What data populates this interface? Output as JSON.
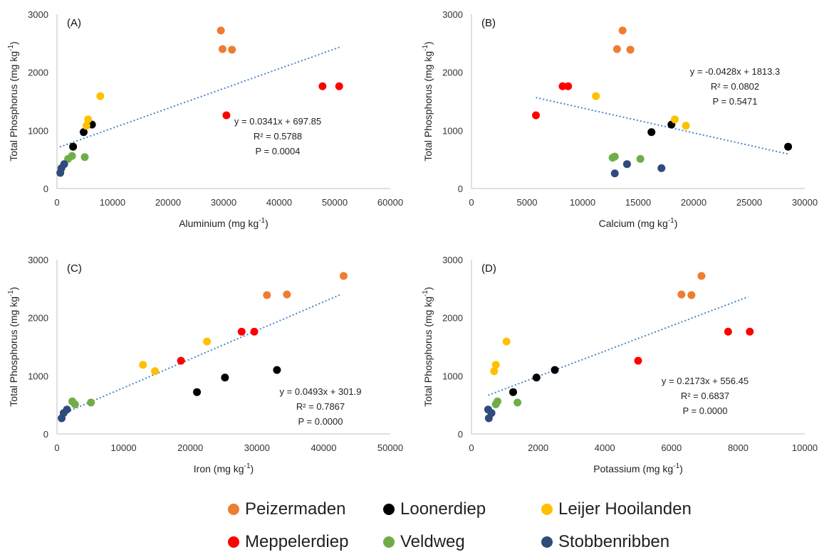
{
  "chart_data": [
    {
      "type": "scatter",
      "panel_label": "(A)",
      "xlabel": "Aluminium (mg kg",
      "xlabel_sup": "-1",
      "xlabel_end": ")",
      "ylabel": "Total Phosphorus (mg kg",
      "ylabel_sup": "-1",
      "ylabel_end": ")",
      "xlim": [
        0,
        60000
      ],
      "ylim": [
        0,
        3000
      ],
      "xticks": [
        "0",
        "10000",
        "20000",
        "30000",
        "40000",
        "50000",
        "60000"
      ],
      "yticks": [
        "0",
        "1000",
        "2000",
        "3000"
      ],
      "equation": "y = 0.0341x + 697.85",
      "r2": "R² = 0.5788",
      "p": "P = 0.0004",
      "trendline": {
        "slope": 0.0341,
        "intercept": 697.85,
        "x_range": [
          500,
          51000
        ]
      },
      "series": [
        {
          "name": "Peizermaden",
          "points": [
            [
              29500,
              2720
            ],
            [
              29800,
              2400
            ],
            [
              31500,
              2390
            ]
          ]
        },
        {
          "name": "Loonerdiep",
          "points": [
            [
              2900,
              720
            ],
            [
              4800,
              970
            ],
            [
              6300,
              1100
            ]
          ]
        },
        {
          "name": "Leijer Hooilanden",
          "points": [
            [
              5300,
              1080
            ],
            [
              5600,
              1190
            ],
            [
              7800,
              1590
            ]
          ]
        },
        {
          "name": "Meppelerdiep",
          "points": [
            [
              30500,
              1260
            ],
            [
              47800,
              1760
            ],
            [
              50800,
              1760
            ]
          ]
        },
        {
          "name": "Veldweg",
          "points": [
            [
              2000,
              510
            ],
            [
              2700,
              560
            ],
            [
              5000,
              540
            ]
          ]
        },
        {
          "name": "Stobbenribben",
          "points": [
            [
              600,
              270
            ],
            [
              800,
              350
            ],
            [
              1300,
              420
            ]
          ]
        }
      ]
    },
    {
      "type": "scatter",
      "panel_label": "(B)",
      "xlabel": "Calcium (mg kg",
      "xlabel_sup": "-1",
      "xlabel_end": ")",
      "ylabel": "Total Phosphorus (mg kg",
      "ylabel_sup": "-1",
      "ylabel_end": ")",
      "xlim": [
        0,
        30000
      ],
      "ylim": [
        0,
        3000
      ],
      "xticks": [
        "0",
        "5000",
        "10000",
        "15000",
        "20000",
        "25000",
        "30000"
      ],
      "yticks": [
        "0",
        "1000",
        "2000",
        "3000"
      ],
      "equation": "y = -0.0428x + 1813.3",
      "r2": "R² = 0.0802",
      "p": "P = 0.5471",
      "trendline": {
        "slope": -0.0428,
        "intercept": 1813.3,
        "x_range": [
          5800,
          28500
        ]
      },
      "series": [
        {
          "name": "Peizermaden",
          "points": [
            [
              13600,
              2720
            ],
            [
              13100,
              2400
            ],
            [
              14300,
              2390
            ]
          ]
        },
        {
          "name": "Loonerdiep",
          "points": [
            [
              16200,
              970
            ],
            [
              18000,
              1100
            ],
            [
              28500,
              720
            ]
          ]
        },
        {
          "name": "Leijer Hooilanden",
          "points": [
            [
              11200,
              1590
            ],
            [
              18300,
              1190
            ],
            [
              19300,
              1080
            ]
          ]
        },
        {
          "name": "Meppelerdiep",
          "points": [
            [
              5800,
              1260
            ],
            [
              8200,
              1760
            ],
            [
              8700,
              1760
            ]
          ]
        },
        {
          "name": "Veldweg",
          "points": [
            [
              12700,
              530
            ],
            [
              12900,
              550
            ],
            [
              15200,
              510
            ]
          ]
        },
        {
          "name": "Stobbenribben",
          "points": [
            [
              12900,
              260
            ],
            [
              14000,
              420
            ],
            [
              17100,
              350
            ]
          ]
        }
      ]
    },
    {
      "type": "scatter",
      "panel_label": "(C)",
      "xlabel": "Iron (mg kg",
      "xlabel_sup": "-1",
      "xlabel_end": ")",
      "ylabel": "Total Phosphorus (mg kg",
      "ylabel_sup": "-1",
      "ylabel_end": ")",
      "xlim": [
        0,
        50000
      ],
      "ylim": [
        0,
        3000
      ],
      "xticks": [
        "0",
        "10000",
        "20000",
        "30000",
        "40000",
        "50000"
      ],
      "yticks": [
        "0",
        "1000",
        "2000",
        "3000"
      ],
      "equation": "y = 0.0493x + 301.9",
      "r2": "R² = 0.7867",
      "p": "P = 0.0000",
      "trendline": {
        "slope": 0.0493,
        "intercept": 301.9,
        "x_range": [
          500,
          42700
        ]
      },
      "series": [
        {
          "name": "Peizermaden",
          "points": [
            [
              31500,
              2390
            ],
            [
              34500,
              2400
            ],
            [
              43000,
              2720
            ]
          ]
        },
        {
          "name": "Loonerdiep",
          "points": [
            [
              21000,
              720
            ],
            [
              25200,
              970
            ],
            [
              33000,
              1100
            ]
          ]
        },
        {
          "name": "Leijer Hooilanden",
          "points": [
            [
              12900,
              1190
            ],
            [
              14700,
              1080
            ],
            [
              22500,
              1590
            ]
          ]
        },
        {
          "name": "Meppelerdiep",
          "points": [
            [
              18600,
              1260
            ],
            [
              27700,
              1760
            ],
            [
              29600,
              1760
            ]
          ]
        },
        {
          "name": "Veldweg",
          "points": [
            [
              2300,
              560
            ],
            [
              2700,
              510
            ],
            [
              5100,
              540
            ]
          ]
        },
        {
          "name": "Stobbenribben",
          "points": [
            [
              700,
              270
            ],
            [
              1000,
              360
            ],
            [
              1500,
              420
            ]
          ]
        }
      ]
    },
    {
      "type": "scatter",
      "panel_label": "(D)",
      "xlabel": "Potassium (mg kg",
      "xlabel_sup": "-1",
      "xlabel_end": ")",
      "ylabel": "Total Phosphorus (mg kg",
      "ylabel_sup": "-1",
      "ylabel_end": ")",
      "xlim": [
        0,
        10000
      ],
      "ylim": [
        0,
        3000
      ],
      "xticks": [
        "0",
        "2000",
        "4000",
        "6000",
        "8000",
        "10000"
      ],
      "yticks": [
        "0",
        "1000",
        "2000",
        "3000"
      ],
      "equation": "y = 0.2173x + 556.45",
      "r2": "R² = 0.6837",
      "p": "P = 0.0000",
      "trendline": {
        "slope": 0.2173,
        "intercept": 556.45,
        "x_range": [
          500,
          8300
        ]
      },
      "series": [
        {
          "name": "Peizermaden",
          "points": [
            [
              6300,
              2400
            ],
            [
              6600,
              2390
            ],
            [
              6900,
              2720
            ]
          ]
        },
        {
          "name": "Loonerdiep",
          "points": [
            [
              1250,
              720
            ],
            [
              1950,
              970
            ],
            [
              2500,
              1100
            ]
          ]
        },
        {
          "name": "Leijer Hooilanden",
          "points": [
            [
              680,
              1080
            ],
            [
              730,
              1190
            ],
            [
              1050,
              1590
            ]
          ]
        },
        {
          "name": "Meppelerdiep",
          "points": [
            [
              5000,
              1260
            ],
            [
              7700,
              1760
            ],
            [
              8350,
              1760
            ]
          ]
        },
        {
          "name": "Veldweg",
          "points": [
            [
              730,
              510
            ],
            [
              780,
              560
            ],
            [
              1380,
              540
            ]
          ]
        },
        {
          "name": "Stobbenribben",
          "points": [
            [
              500,
              420
            ],
            [
              520,
              270
            ],
            [
              600,
              360
            ]
          ]
        }
      ]
    }
  ],
  "legend": {
    "items": [
      {
        "name": "Peizermaden",
        "color": "#ED7D31"
      },
      {
        "name": "Loonerdiep",
        "color": "#000000"
      },
      {
        "name": "Leijer Hooilanden",
        "color": "#FFC000"
      },
      {
        "name": "Meppelerdiep",
        "color": "#FF0000"
      },
      {
        "name": "Veldweg",
        "color": "#70AD47"
      },
      {
        "name": "Stobbenribben",
        "color": "#2F4B7C"
      }
    ]
  },
  "colors": {
    "axis": "#BFBFBF",
    "trendline": "#4A86C8",
    "tick_text": "#333333"
  }
}
